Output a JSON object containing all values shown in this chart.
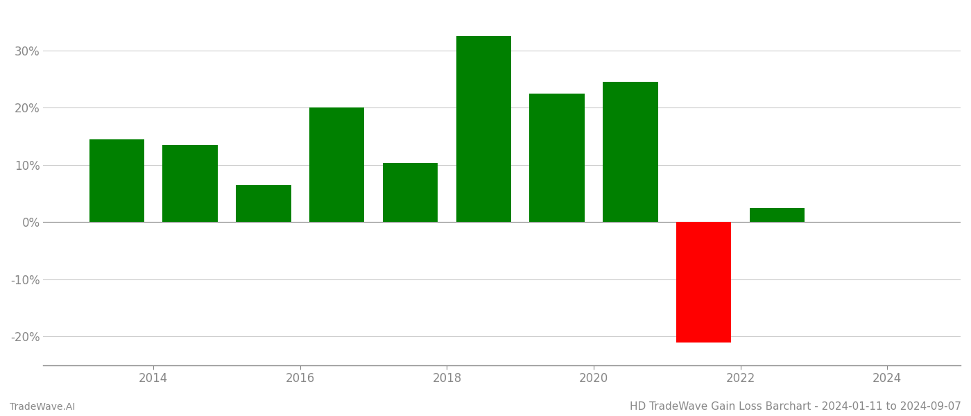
{
  "years": [
    2013.5,
    2014.5,
    2015.5,
    2016.5,
    2017.5,
    2018.5,
    2019.5,
    2020.5,
    2021.5,
    2022.5
  ],
  "values": [
    14.5,
    13.5,
    6.5,
    20.0,
    10.3,
    32.5,
    22.5,
    24.5,
    -21.0,
    2.5
  ],
  "colors": [
    "#008000",
    "#008000",
    "#008000",
    "#008000",
    "#008000",
    "#008000",
    "#008000",
    "#008000",
    "#ff0000",
    "#008000"
  ],
  "title": "HD TradeWave Gain Loss Barchart - 2024-01-11 to 2024-09-07",
  "footer_left": "TradeWave.AI",
  "ylim": [
    -25,
    37
  ],
  "yticks": [
    -20,
    -10,
    0,
    10,
    20,
    30
  ],
  "xlim": [
    2012.5,
    2025.0
  ],
  "xticks": [
    2014,
    2016,
    2018,
    2020,
    2022,
    2024
  ],
  "bar_width": 0.75,
  "background_color": "#ffffff",
  "grid_color": "#cccccc",
  "axis_color": "#888888",
  "tick_color": "#888888",
  "title_fontsize": 11,
  "footer_fontsize": 10
}
